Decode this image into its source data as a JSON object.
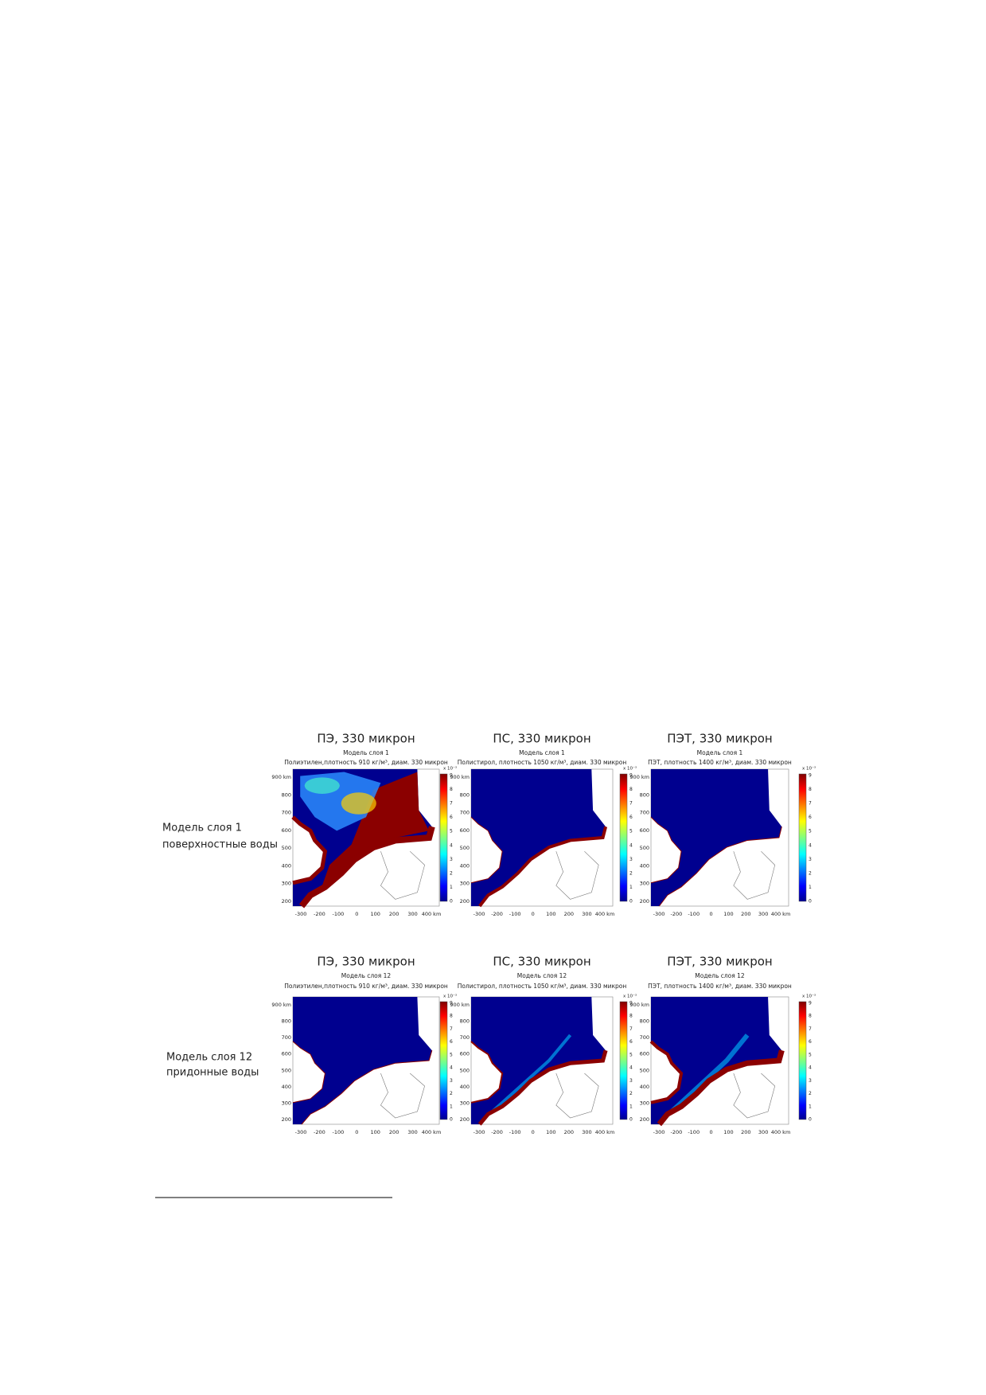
{
  "figure": {
    "row_labels": [
      [
        "Модель слоя 1",
        "поверхностные воды"
      ],
      [
        "Модель слоя 12",
        "придонные воды"
      ]
    ],
    "panels": [
      [
        {
          "title": "ПЭ, 330 микрон",
          "model": "Модель слоя 1",
          "subtitle": "Полиэтилен,плотность 910 кг/м³, диам. 330 микрон"
        },
        {
          "title": "ПС, 330 микрон",
          "model": "Модель слоя 1",
          "subtitle": "Полистирол, плотность 1050 кг/м³, диам. 330 микрон"
        },
        {
          "title": "ПЭТ, 330 микрон",
          "model": "Модель слоя 1",
          "subtitle": "ПЭТ, плотность 1400 кг/м³, диам. 330 микрон"
        }
      ],
      [
        {
          "title": "ПЭ, 330 микрон",
          "model": "Модель слоя 12",
          "subtitle": "Полиэтилен,плотность 910 кг/м³, диам. 330 микрон"
        },
        {
          "title": "ПС, 330 микрон",
          "model": "Модель слоя 12",
          "subtitle": "Полистирол, плотность 1050 кг/м³, диам. 330 микрон"
        },
        {
          "title": "ПЭТ, 330 микрон",
          "model": "Модель слоя 12",
          "subtitle": "ПЭТ, плотность 1400 кг/м³, диам. 330 микрон"
        }
      ]
    ],
    "y_ticks": [
      "900 km",
      "800",
      "700",
      "600",
      "500",
      "400",
      "300",
      "200"
    ],
    "x_ticks": [
      "-300",
      "-200",
      "-100",
      "0",
      "100",
      "200",
      "300",
      "400 km"
    ],
    "colorbar_ticks": [
      "0",
      "1",
      "2",
      "3",
      "4",
      "5",
      "6",
      "7",
      "8",
      "9"
    ],
    "colorbar_exponent": "x 10⁻³"
  }
}
